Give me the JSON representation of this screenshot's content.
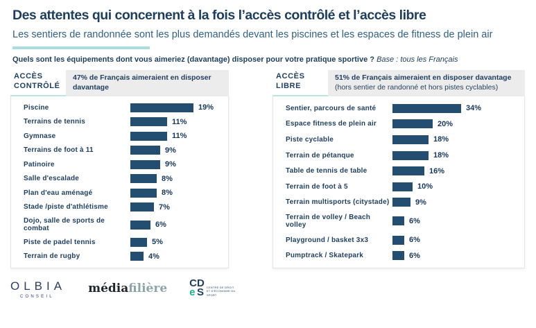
{
  "header": {
    "title": "Des attentes qui concernent à la fois l’accès contrôlé et l’accès libre",
    "subtitle": "Les sentiers de randonnée sont les plus demandés devant les piscines et les espaces de fitness de plein air",
    "question": "Quels sont les équipements dont vous aimeriez (davantage) disposer pour votre pratique sportive ?",
    "question_base": "Base : tous les Français"
  },
  "colors": {
    "bar": "#234e70",
    "navy_text": "#1d3e5f",
    "subtitle_blue": "#2e6187",
    "teal_accent": "#a9dde2",
    "header_box_gray": "#ececec"
  },
  "chart_data": [
    {
      "type": "bar",
      "orientation": "horizontal",
      "access_label": "ACCÈS\nCONTRÔLÉ",
      "summary_bold": "47% de Français aimeraient en disposer davantage",
      "summary_note": "",
      "unit": "%",
      "xlim": [
        0,
        20
      ],
      "categories": [
        "Piscine",
        "Terrains de tennis",
        "Gymnase",
        "Terrains de foot à 11",
        "Patinoire",
        "Salle d'escalade",
        "Plan d'eau aménagé",
        "Stade /piste d'athlétisme",
        "Dojo, salle de sports de combat",
        "Piste de padel tennis",
        "Terrain de rugby"
      ],
      "values": [
        19,
        11,
        11,
        9,
        9,
        8,
        8,
        7,
        6,
        5,
        4
      ]
    },
    {
      "type": "bar",
      "orientation": "horizontal",
      "access_label": "ACCÈS\nLIBRE",
      "summary_bold": "51% de Français aimeraient en disposer davantage ",
      "summary_note": "(hors sentier de randonné et hors pistes cyclables)",
      "unit": "%",
      "xlim": [
        0,
        35
      ],
      "categories": [
        "Sentier, parcours de santé",
        "Espace fitness de plein air",
        "Piste cyclable",
        "Terrain de pétanque",
        "Table de tennis de table",
        "Terrain de foot à 5",
        "Terrain multisports (citystade)",
        "Terrain de volley / Beach volley",
        "Playground / basket 3x3",
        "Pumptrack / Skatepark"
      ],
      "values": [
        34,
        20,
        18,
        18,
        16,
        10,
        9,
        6,
        6,
        6
      ]
    }
  ],
  "footer": {
    "olbia_name": "OLBIA",
    "olbia_sub": "CONSEIL",
    "mf_part1": "média",
    "mf_part2": "filière",
    "cdes_l1": "C",
    "cdes_l2": "D",
    "cdes_l3": "e",
    "cdes_l4": "S",
    "cdes_caption": "Centre de droit et d'économie du sport"
  }
}
